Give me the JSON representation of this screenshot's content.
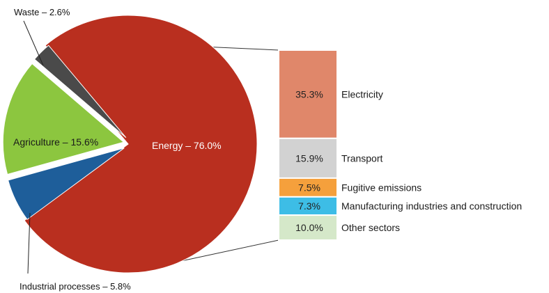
{
  "chart_data": {
    "type": "pie",
    "pie": {
      "slices": [
        {
          "label": "Energy – 76.0%",
          "name": "Energy",
          "value": 76.0,
          "color": "#b92f1f"
        },
        {
          "label": "Industrial processes – 5.8%",
          "name": "Industrial processes",
          "value": 5.8,
          "color": "#1e5e9a"
        },
        {
          "label": "Agriculture – 15.6%",
          "name": "Agriculture",
          "value": 15.6,
          "color": "#8cc63f"
        },
        {
          "label": "Waste – 2.6%",
          "name": "Waste",
          "value": 2.6,
          "color": "#4a4a4a"
        }
      ],
      "exploded": "Energy"
    },
    "breakdown": {
      "of": "Energy",
      "type": "stacked-bar",
      "segments": [
        {
          "value_label": "35.3%",
          "label": "Electricity",
          "value": 35.3,
          "color": "#e0876a"
        },
        {
          "value_label": "15.9%",
          "label": "Transport",
          "value": 15.9,
          "color": "#d2d2d2"
        },
        {
          "value_label": "7.5%",
          "label": "Fugitive emissions",
          "value": 7.5,
          "color": "#f5a03c"
        },
        {
          "value_label": "7.3%",
          "label": "Manufacturing industries and construction",
          "value": 7.3,
          "color": "#3dbde6"
        },
        {
          "value_label": "10.0%",
          "label": "Other sectors",
          "value": 10.0,
          "color": "#d5e8c9"
        }
      ]
    }
  }
}
